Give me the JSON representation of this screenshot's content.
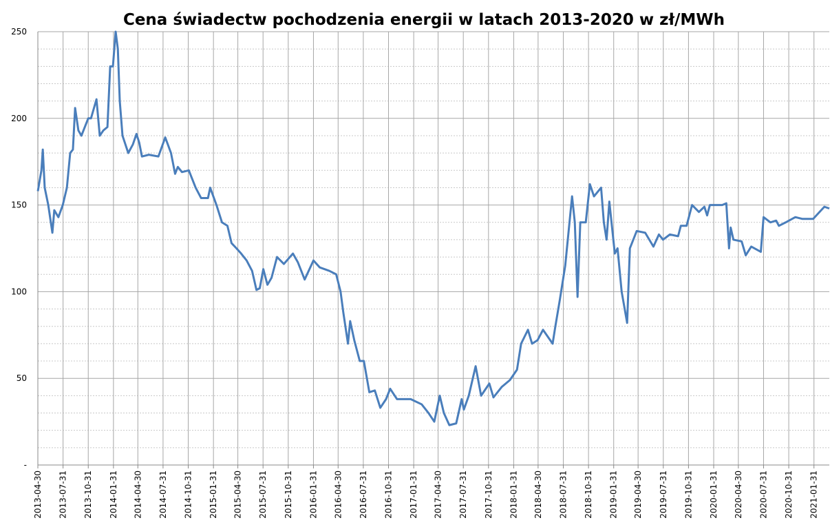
{
  "chart_data": {
    "type": "line",
    "title": "Cena świadectw pochodzenia energii w latach 2013-2020 w zł/MWh",
    "color": "#4a7ebb",
    "grid": true,
    "xlim": [
      "2013-04-30",
      "2021-03-28"
    ],
    "xticks": [
      "2013-04-30",
      "2013-07-31",
      "2013-10-31",
      "2014-01-31",
      "2014-04-30",
      "2014-07-31",
      "2014-10-31",
      "2015-01-31",
      "2015-04-30",
      "2015-07-31",
      "2015-10-31",
      "2016-01-31",
      "2016-04-30",
      "2016-07-31",
      "2016-10-31",
      "2017-01-31",
      "2017-04-30",
      "2017-07-31",
      "2017-10-31",
      "2018-01-31",
      "2018-04-30",
      "2018-07-31",
      "2018-10-31",
      "2019-01-31",
      "2019-04-30",
      "2019-07-31",
      "2019-10-31",
      "2020-01-31",
      "2020-04-30",
      "2020-07-31",
      "2020-10-31",
      "2021-01-31"
    ],
    "ylim": [
      0,
      250
    ],
    "yticks": [
      {
        "value": 0,
        "label": "-"
      },
      50,
      100,
      150,
      200,
      250
    ],
    "yminorticks": [
      10,
      20,
      30,
      40,
      60,
      70,
      80,
      90,
      110,
      120,
      130,
      140,
      160,
      170,
      180,
      190,
      210,
      220,
      230,
      240
    ],
    "x": [
      "2013-04-30",
      "2013-05-13",
      "2013-05-18",
      "2013-05-25",
      "2013-06-07",
      "2013-06-22",
      "2013-06-29",
      "2013-07-14",
      "2013-07-30",
      "2013-08-14",
      "2013-08-26",
      "2013-09-05",
      "2013-09-13",
      "2013-09-25",
      "2013-10-06",
      "2013-10-21",
      "2013-10-31",
      "2013-11-10",
      "2013-11-30",
      "2013-12-12",
      "2013-12-25",
      "2014-01-09",
      "2014-01-19",
      "2014-01-29",
      "2014-02-08",
      "2014-02-16",
      "2014-02-23",
      "2014-03-05",
      "2014-03-26",
      "2014-04-12",
      "2014-04-25",
      "2014-05-05",
      "2014-05-15",
      "2014-06-09",
      "2014-07-14",
      "2014-08-08",
      "2014-08-29",
      "2014-09-13",
      "2014-09-23",
      "2014-10-08",
      "2014-11-02",
      "2014-11-27",
      "2014-12-17",
      "2015-01-11",
      "2015-01-19",
      "2015-02-11",
      "2015-03-03",
      "2015-03-23",
      "2015-04-07",
      "2015-04-25",
      "2015-05-12",
      "2015-06-01",
      "2015-06-21",
      "2015-07-07",
      "2015-07-19",
      "2015-08-01",
      "2015-08-16",
      "2015-08-31",
      "2015-09-20",
      "2015-10-15",
      "2015-11-17",
      "2015-12-05",
      "2015-12-30",
      "2016-01-31",
      "2016-02-23",
      "2016-03-29",
      "2016-04-23",
      "2016-05-09",
      "2016-05-19",
      "2016-06-05",
      "2016-06-13",
      "2016-06-28",
      "2016-07-18",
      "2016-08-02",
      "2016-08-22",
      "2016-09-11",
      "2016-10-01",
      "2016-10-22",
      "2016-11-06",
      "2016-12-01",
      "2017-01-20",
      "2017-03-01",
      "2017-03-26",
      "2017-04-16",
      "2017-05-06",
      "2017-05-21",
      "2017-06-10",
      "2017-07-05",
      "2017-07-25",
      "2017-08-02",
      "2017-08-20",
      "2017-09-14",
      "2017-10-04",
      "2017-11-03",
      "2017-11-18",
      "2017-12-18",
      "2018-01-17",
      "2018-02-12",
      "2018-02-27",
      "2018-03-24",
      "2018-04-08",
      "2018-04-28",
      "2018-05-18",
      "2018-06-22",
      "2018-07-02",
      "2018-07-18",
      "2018-08-07",
      "2018-09-01",
      "2018-09-11",
      "2018-09-21",
      "2018-10-01",
      "2018-10-21",
      "2018-11-05",
      "2018-11-20",
      "2018-12-16",
      "2018-12-26",
      "2019-01-05",
      "2019-01-15",
      "2019-02-04",
      "2019-02-14",
      "2019-03-01",
      "2019-03-21",
      "2019-03-31",
      "2019-04-25",
      "2019-05-26",
      "2019-06-25",
      "2019-07-15",
      "2019-07-30",
      "2019-08-24",
      "2019-09-23",
      "2019-10-03",
      "2019-10-24",
      "2019-11-13",
      "2019-12-08",
      "2019-12-28",
      "2020-01-07",
      "2020-01-17",
      "2020-03-02",
      "2020-03-17",
      "2020-03-27",
      "2020-04-02",
      "2020-04-12",
      "2020-05-12",
      "2020-05-27",
      "2020-06-16",
      "2020-07-21",
      "2020-07-31",
      "2020-08-25",
      "2020-09-15",
      "2020-09-25",
      "2020-10-20",
      "2020-11-24",
      "2020-12-19",
      "2021-01-28",
      "2021-03-10",
      "2021-03-28"
    ],
    "values": [
      158,
      170,
      182,
      160,
      150,
      134,
      147,
      143,
      150,
      160,
      180,
      182,
      206,
      193,
      190,
      196,
      200,
      200,
      211,
      190,
      193,
      195,
      230,
      230,
      250,
      240,
      210,
      190,
      180,
      185,
      191,
      186,
      178,
      179,
      178,
      189,
      180,
      168,
      172,
      169,
      170,
      160,
      154,
      154,
      160,
      150,
      140,
      138,
      128,
      125,
      122,
      118,
      112,
      101,
      102,
      113,
      104,
      108,
      120,
      116,
      122,
      117,
      107,
      118,
      114,
      112,
      110,
      100,
      88,
      70,
      83,
      72,
      60,
      60,
      42,
      43,
      33,
      38,
      44,
      38,
      38,
      35,
      30,
      25,
      40,
      30,
      23,
      24,
      38,
      32,
      40,
      57,
      40,
      47,
      39,
      45,
      49,
      55,
      70,
      78,
      70,
      72,
      78,
      70,
      80,
      95,
      115,
      155,
      140,
      97,
      140,
      140,
      162,
      155,
      160,
      140,
      130,
      152,
      122,
      125,
      100,
      82,
      125,
      135,
      134,
      126,
      133,
      130,
      133,
      132,
      138,
      138,
      150,
      146,
      149,
      144,
      150,
      150,
      151,
      125,
      137,
      130,
      129,
      121,
      126,
      123,
      143,
      140,
      141,
      138,
      140,
      143,
      142,
      142,
      149,
      148
    ]
  }
}
